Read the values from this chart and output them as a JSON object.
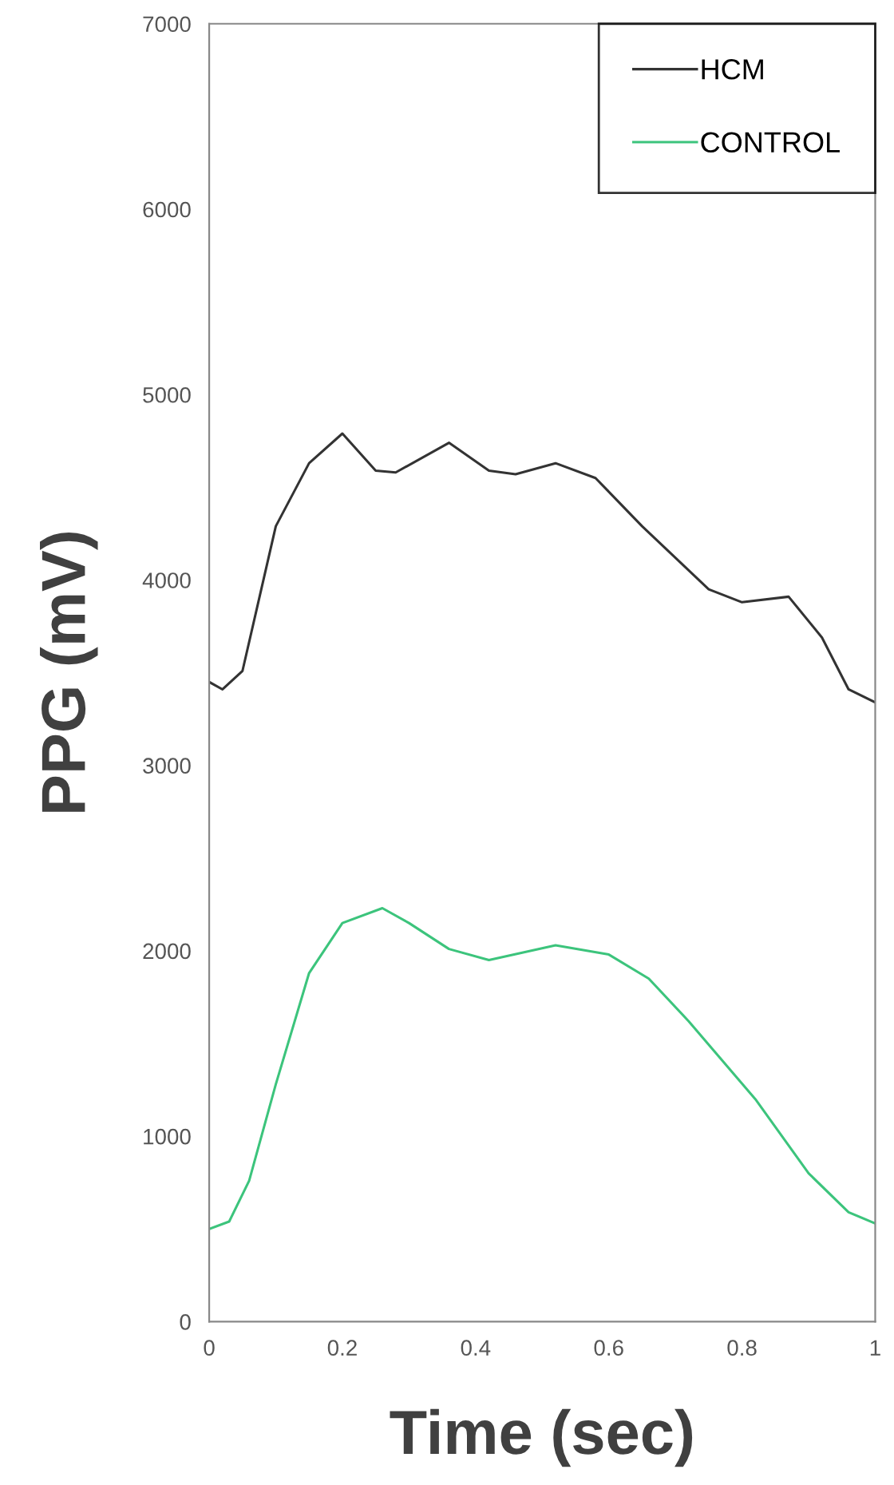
{
  "chart_data": {
    "type": "line",
    "xlabel": "Time (sec)",
    "ylabel": "PPG (mV)",
    "xlim": [
      0,
      1
    ],
    "xticks": [
      0,
      0.2,
      0.4,
      0.6,
      0.8,
      1
    ],
    "ylim": [
      0,
      7000
    ],
    "yticks": [
      0,
      1000,
      2000,
      3000,
      4000,
      5000,
      6000,
      7000
    ],
    "grid": false,
    "legend": "top right",
    "marker": "none",
    "line_style": "solid",
    "series": [
      {
        "name": "HCM",
        "color": "#333333",
        "x": [
          0,
          0.02,
          0.05,
          0.1,
          0.15,
          0.2,
          0.25,
          0.28,
          0.36,
          0.42,
          0.46,
          0.52,
          0.58,
          0.65,
          0.75,
          0.8,
          0.87,
          0.92,
          0.96,
          1.0
        ],
        "values": [
          3450,
          3410,
          3510,
          4290,
          4630,
          4790,
          4590,
          4580,
          4740,
          4590,
          4570,
          4630,
          4550,
          4290,
          3950,
          3880,
          3910,
          3690,
          3410,
          3340
        ]
      },
      {
        "name": "CONTROL",
        "color": "#3cc47c",
        "x": [
          0,
          0.03,
          0.06,
          0.1,
          0.15,
          0.2,
          0.26,
          0.3,
          0.36,
          0.42,
          0.52,
          0.6,
          0.66,
          0.72,
          0.82,
          0.9,
          0.96,
          1.0
        ],
        "values": [
          500,
          540,
          760,
          1280,
          1880,
          2150,
          2230,
          2150,
          2010,
          1950,
          2030,
          1980,
          1850,
          1620,
          1200,
          800,
          590,
          530
        ]
      }
    ]
  }
}
